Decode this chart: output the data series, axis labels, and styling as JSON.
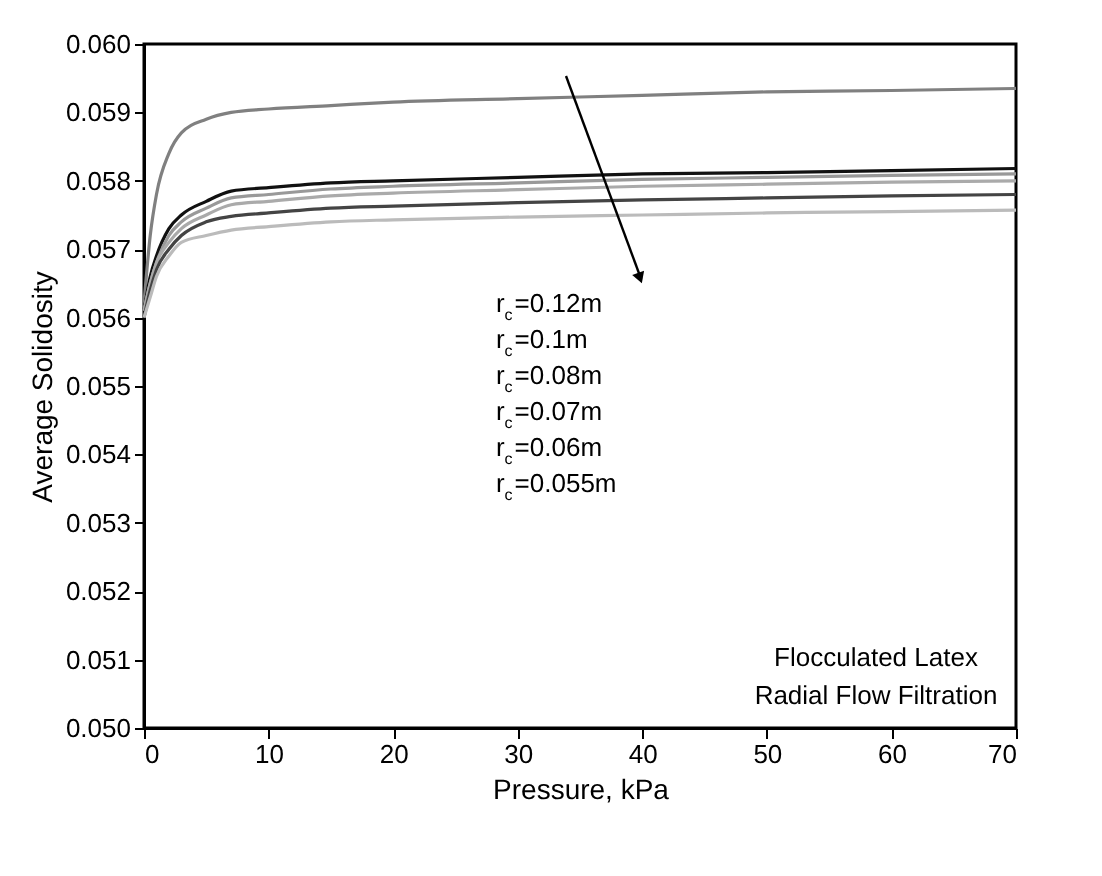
{
  "chart_data": {
    "type": "line",
    "xlabel": "Pressure, kPa",
    "ylabel": "Average Solidosity",
    "x": [
      0,
      0.5,
      1,
      2,
      3,
      5,
      7,
      10,
      15,
      20,
      30,
      40,
      50,
      60,
      70
    ],
    "series": [
      {
        "color": "#808080",
        "values": [
          0.0562,
          0.0572,
          0.0578,
          0.0584,
          0.0587,
          0.0589,
          0.059,
          0.05905,
          0.0591,
          0.05915,
          0.0592,
          0.05925,
          0.0593,
          0.05932,
          0.05935
        ]
      },
      {
        "color": "#111111",
        "values": [
          0.0561,
          0.0566,
          0.0569,
          0.0573,
          0.0575,
          0.0577,
          0.05785,
          0.0579,
          0.05797,
          0.058,
          0.05805,
          0.0581,
          0.05812,
          0.05815,
          0.05818
        ]
      },
      {
        "color": "#999999",
        "values": [
          0.0561,
          0.0565,
          0.0568,
          0.0572,
          0.0574,
          0.0576,
          0.05775,
          0.0578,
          0.05788,
          0.05792,
          0.05797,
          0.05802,
          0.05805,
          0.05808,
          0.0581
        ]
      },
      {
        "color": "#aaaaaa",
        "values": [
          0.0561,
          0.0565,
          0.0568,
          0.0571,
          0.0573,
          0.0575,
          0.05765,
          0.0577,
          0.05778,
          0.05782,
          0.05787,
          0.05792,
          0.05795,
          0.05798,
          0.058
        ]
      },
      {
        "color": "#444444",
        "values": [
          0.056,
          0.0564,
          0.0567,
          0.057,
          0.0572,
          0.0574,
          0.05748,
          0.05753,
          0.0576,
          0.05763,
          0.05768,
          0.05772,
          0.05775,
          0.05778,
          0.0578
        ]
      },
      {
        "color": "#bbbbbb",
        "values": [
          0.056,
          0.0563,
          0.0566,
          0.0569,
          0.0571,
          0.0572,
          0.05728,
          0.05733,
          0.0574,
          0.05743,
          0.05747,
          0.0575,
          0.05753,
          0.05755,
          0.05757
        ]
      }
    ],
    "annotations": [
      "r$_{c}$=0.12m",
      "r$_{c}$=0.1m",
      "r$_{c}$=0.08m",
      "r$_{c}$=0.07m",
      "r$_{c}$=0.06m",
      "r$_{c}$=0.055m",
      "Flocculated Latex",
      "Radial Flow Filtration"
    ],
    "xlim": [
      0,
      70
    ],
    "xticks": [
      0,
      10,
      20,
      30,
      40,
      50,
      60,
      70
    ],
    "ylim": [
      0.05,
      0.06
    ],
    "yticks": [
      {
        "value": 0.05,
        "label": "0.050"
      },
      0.051,
      0.052,
      0.053,
      0.054,
      0.055,
      0.056,
      0.057,
      0.058,
      0.059,
      {
        "value": 0.06,
        "label": "0.060"
      }
    ],
    "grid": false,
    "marker": "none",
    "line_style": "solid"
  }
}
